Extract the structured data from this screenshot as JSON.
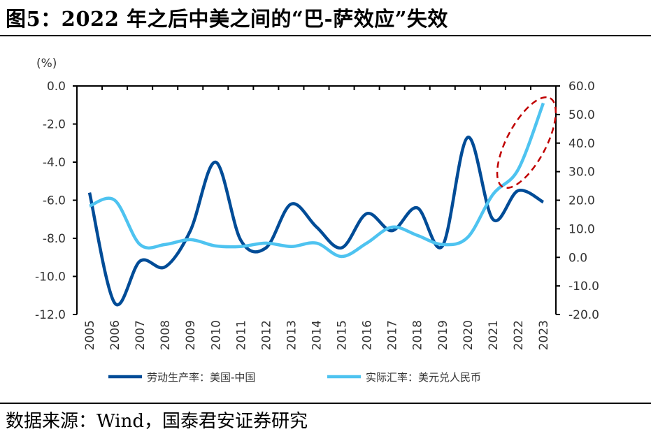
{
  "title": "图5：2022 年之后中美之间的“巴-萨效应”失效",
  "source": "数据来源：Wind，国泰君安证券研究",
  "chart_data": {
    "type": "line",
    "title": "",
    "left_axis_unit": "(%)",
    "x": [
      "2005",
      "2006",
      "2007",
      "2008",
      "2009",
      "2010",
      "2011",
      "2012",
      "2013",
      "2014",
      "2015",
      "2016",
      "2017",
      "2018",
      "2019",
      "2020",
      "2021",
      "2022",
      "2023"
    ],
    "left_axis": {
      "range": [
        -12,
        0
      ],
      "ticks": [
        "0.0",
        "-2.0",
        "-4.0",
        "-6.0",
        "-8.0",
        "-10.0",
        "-12.0"
      ]
    },
    "right_axis": {
      "range": [
        -20,
        60
      ],
      "ticks": [
        "60.0",
        "50.0",
        "40.0",
        "30.0",
        "20.0",
        "10.0",
        "0.0",
        "-10.0",
        "-20.0"
      ]
    },
    "series": [
      {
        "name": "劳动生产率：美国-中国",
        "axis": "left",
        "color": "#004C97",
        "values": [
          -5.6,
          -11.4,
          -9.2,
          -9.5,
          -7.6,
          -4.0,
          -8.1,
          -8.5,
          -6.2,
          -7.4,
          -8.5,
          -6.7,
          -7.6,
          -6.4,
          -8.4,
          -2.7,
          -7.0,
          -5.5,
          -6.1
        ]
      },
      {
        "name": "实际汇率：美元兑人民币",
        "axis": "right",
        "color": "#4EC3F0",
        "values": [
          18,
          20,
          4.5,
          4.5,
          6.2,
          4,
          3.8,
          5,
          3.8,
          5,
          0.3,
          5,
          10.6,
          7.7,
          4.5,
          7,
          22,
          30.7,
          54
        ]
      }
    ],
    "annotation": {
      "type": "dashed-ellipse",
      "color": "#C00000",
      "around": [
        "2021",
        "2023"
      ]
    },
    "grid": false,
    "legend": "bottom"
  }
}
